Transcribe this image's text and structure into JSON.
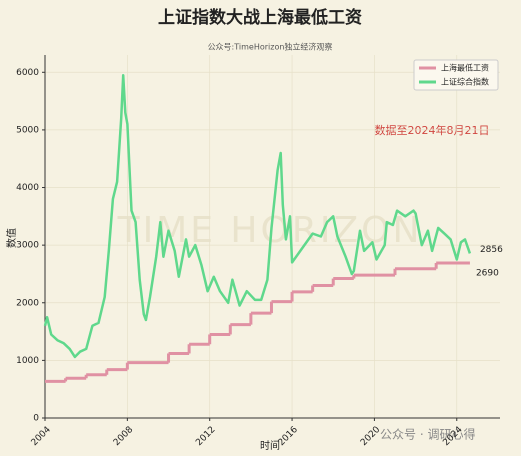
{
  "chart_data": {
    "type": "line",
    "title": "上证指数大战上海最低工资",
    "subtitle": "公众号:TimeHorizon独立经济观察",
    "annotation": "数据至2024年8月21日",
    "watermarks": [
      "TIME HORIZON",
      "公众号 · 调研心得"
    ],
    "x_label": "时间",
    "y_label": "数值",
    "xlim": [
      2004,
      2026.1
    ],
    "xticks": [
      2004,
      2008,
      2012,
      2016,
      2020,
      2024
    ],
    "ylim": [
      0,
      6300
    ],
    "yticks": [
      0,
      1000,
      2000,
      3000,
      4000,
      5000,
      6000
    ],
    "grid": true,
    "legend": "upper right",
    "series": [
      {
        "name": "上海最低工资",
        "color": "#e091a3",
        "step": "post",
        "x": [
          2004,
          2005,
          2006,
          2007,
          2008,
          2010,
          2011,
          2012,
          2013,
          2014,
          2015,
          2016,
          2017,
          2018,
          2019,
          2021,
          2023,
          2024.64
        ],
        "values": [
          635,
          690,
          750,
          840,
          960,
          1120,
          1280,
          1450,
          1620,
          1820,
          2020,
          2190,
          2300,
          2420,
          2480,
          2590,
          2690,
          2690
        ]
      },
      {
        "name": "上证综合指数",
        "color": "#5fd88c",
        "x": [
          2004.0,
          2004.1,
          2004.3,
          2004.6,
          2004.9,
          2005.2,
          2005.45,
          2005.7,
          2006.0,
          2006.3,
          2006.6,
          2006.9,
          2007.1,
          2007.3,
          2007.5,
          2007.7,
          2007.8,
          2007.9,
          2008.0,
          2008.2,
          2008.4,
          2008.6,
          2008.8,
          2008.9,
          2009.1,
          2009.4,
          2009.6,
          2009.75,
          2010.0,
          2010.3,
          2010.5,
          2010.85,
          2011.0,
          2011.3,
          2011.6,
          2011.9,
          2012.2,
          2012.5,
          2012.9,
          2013.1,
          2013.45,
          2013.8,
          2014.2,
          2014.5,
          2014.8,
          2015.0,
          2015.3,
          2015.45,
          2015.55,
          2015.7,
          2015.9,
          2016.0,
          2016.4,
          2016.8,
          2017.0,
          2017.4,
          2017.7,
          2018.0,
          2018.2,
          2018.6,
          2018.9,
          2019.0,
          2019.3,
          2019.5,
          2019.9,
          2020.1,
          2020.5,
          2020.6,
          2020.9,
          2021.1,
          2021.5,
          2021.9,
          2022.0,
          2022.3,
          2022.6,
          2022.8,
          2023.1,
          2023.4,
          2023.7,
          2024.0,
          2024.2,
          2024.4,
          2024.64
        ],
        "values": [
          1600,
          1750,
          1450,
          1350,
          1300,
          1200,
          1060,
          1150,
          1200,
          1600,
          1650,
          2100,
          2900,
          3800,
          4100,
          5200,
          5950,
          5300,
          5100,
          3600,
          3400,
          2400,
          1800,
          1700,
          2100,
          2800,
          3400,
          2800,
          3250,
          2900,
          2450,
          3100,
          2800,
          3000,
          2650,
          2200,
          2450,
          2200,
          2000,
          2400,
          1950,
          2200,
          2050,
          2050,
          2400,
          3300,
          4300,
          4600,
          3700,
          3100,
          3500,
          2700,
          2900,
          3100,
          3200,
          3150,
          3400,
          3500,
          3150,
          2800,
          2500,
          2550,
          3250,
          2900,
          3050,
          2750,
          3000,
          3400,
          3350,
          3600,
          3500,
          3600,
          3550,
          3000,
          3250,
          2900,
          3300,
          3200,
          3100,
          2750,
          3050,
          3100,
          2856
        ]
      }
    ]
  }
}
